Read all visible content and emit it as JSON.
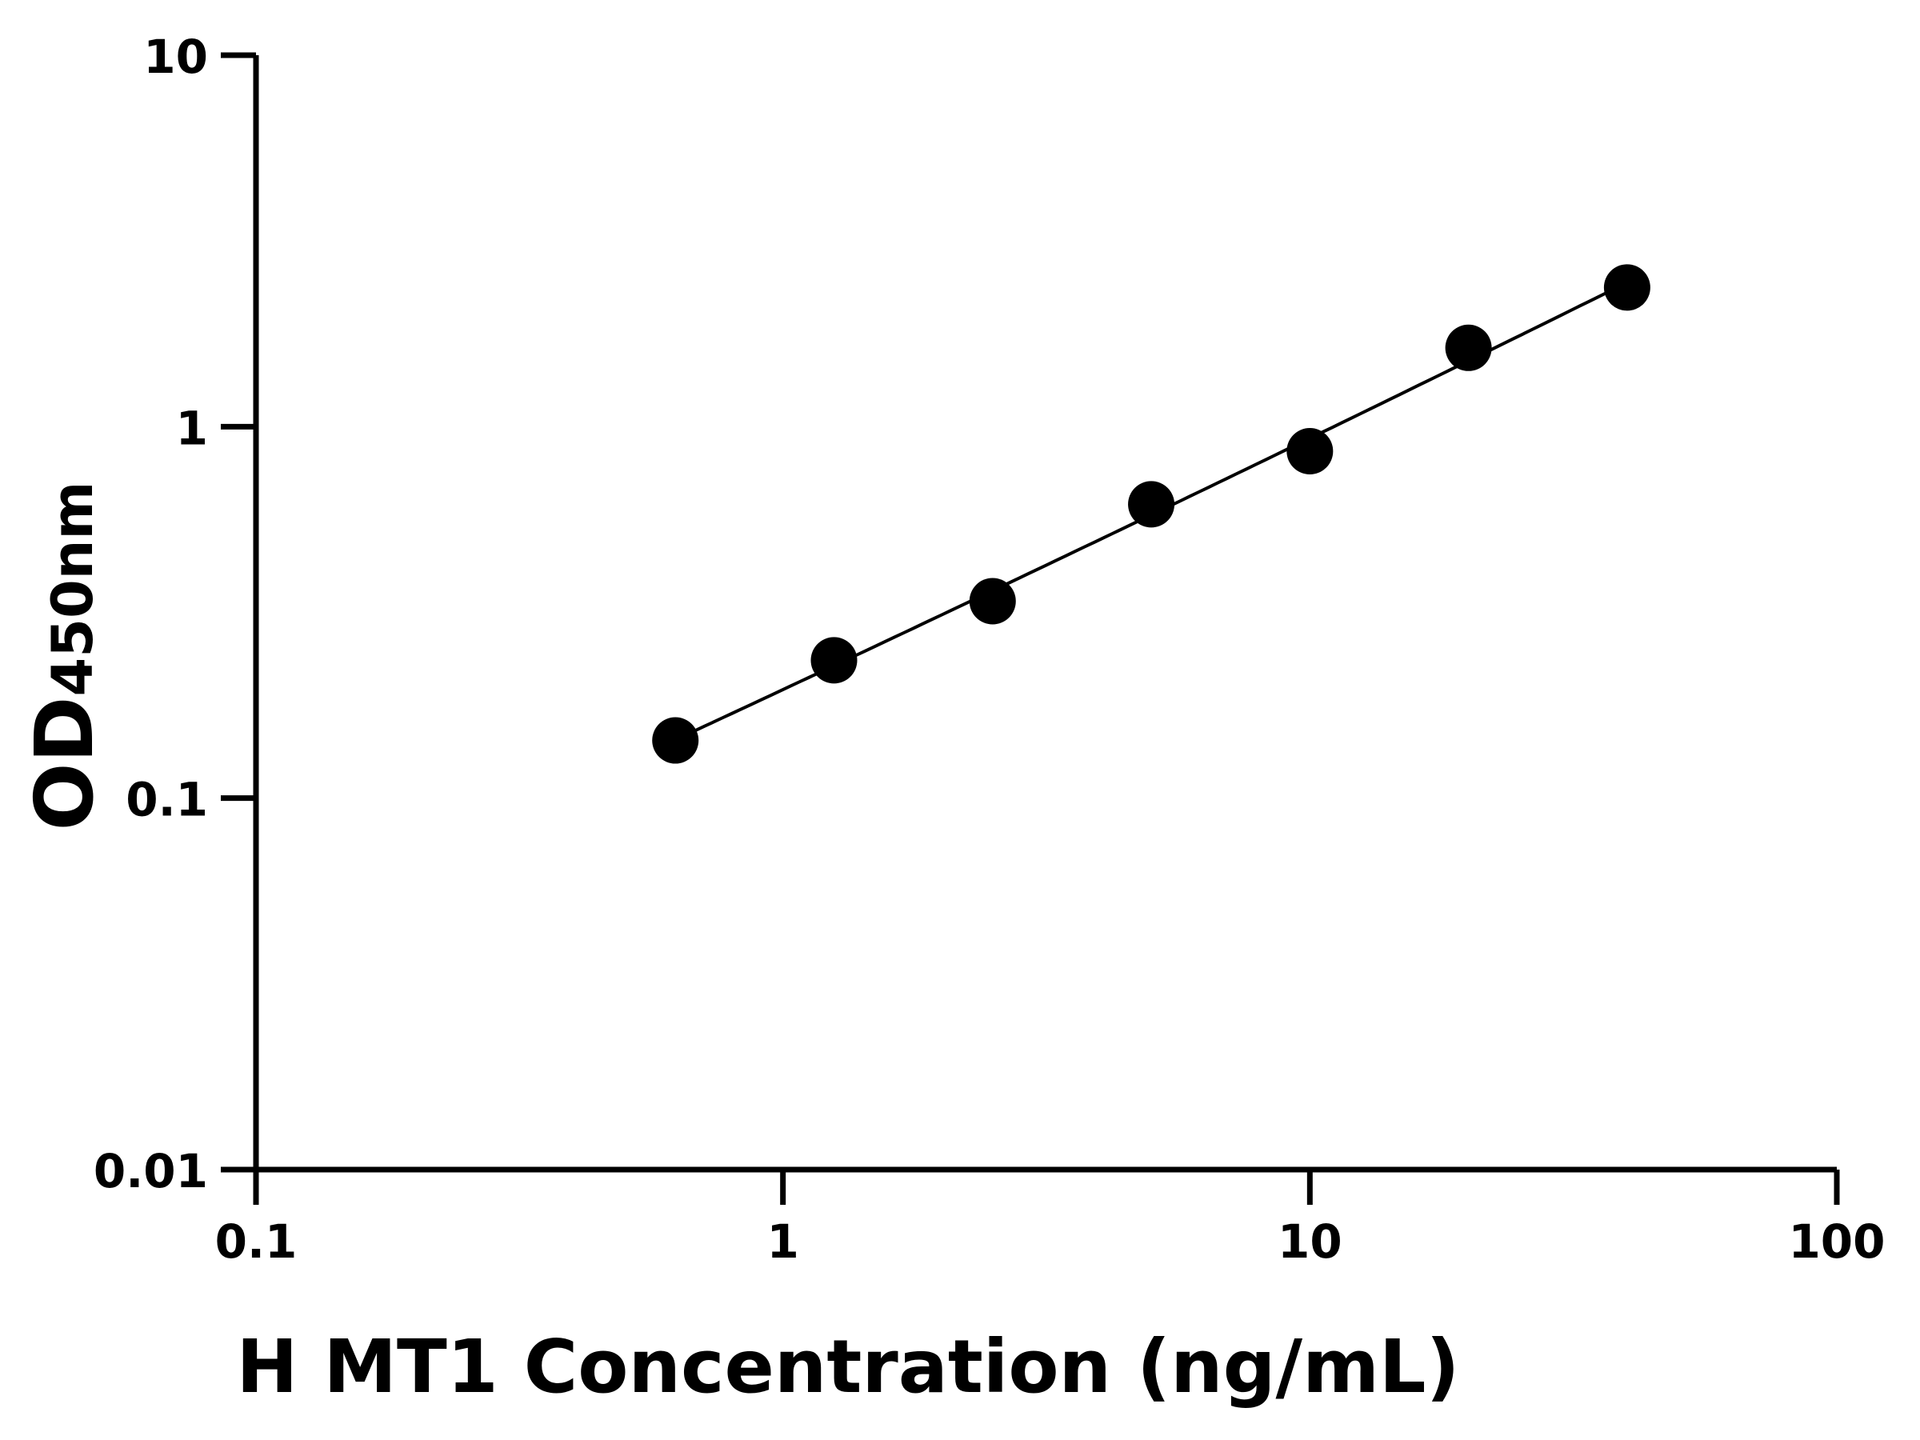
{
  "chart_data": {
    "type": "scatter",
    "xlabel": "H MT1 Concentration (ng/mL)",
    "ylabel": "OD",
    "ylabel_subscript": "450nm",
    "xscale": "log",
    "yscale": "log",
    "xlim": [
      0.1,
      100
    ],
    "ylim": [
      0.01,
      10
    ],
    "xticks": [
      "0.1",
      "1",
      "10",
      "100"
    ],
    "yticks": [
      "0.01",
      "0.1",
      "1",
      "10"
    ],
    "grid": false,
    "legend": "none",
    "marker_color": "#000000",
    "fit_curve": true,
    "x": [
      0.625,
      1.25,
      2.5,
      5,
      10,
      20,
      40
    ],
    "y": [
      0.143,
      0.235,
      0.339,
      0.618,
      0.859,
      1.63,
      2.37
    ]
  }
}
